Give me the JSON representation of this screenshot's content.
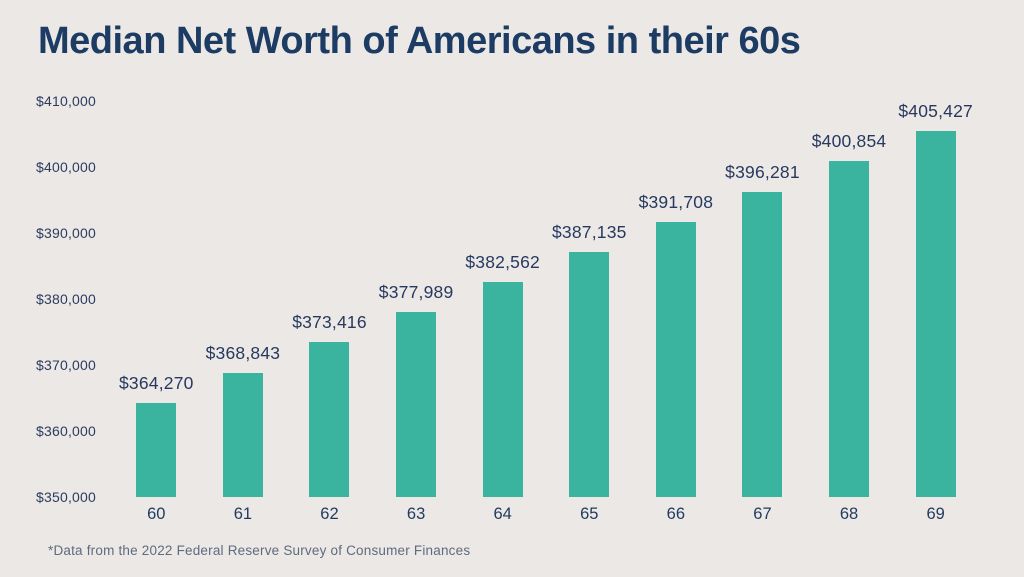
{
  "title": "Median Net Worth of Americans in their 60s",
  "footnote": "*Data from the 2022 Federal Reserve Survey of Consumer Finances",
  "colors": {
    "background": "#ECE8E6",
    "bar": "#3AB39F",
    "title_text": "#1C3C64",
    "value_label_text": "#26395E",
    "axis_tick_text": "#2B3C5E",
    "footnote_text": "#5E6B7E"
  },
  "chart_data": {
    "type": "bar",
    "title": "Median Net Worth of Americans in their 60s",
    "xlabel": "",
    "ylabel": "",
    "categories": [
      "60",
      "61",
      "62",
      "63",
      "64",
      "65",
      "66",
      "67",
      "68",
      "69"
    ],
    "values": [
      364270,
      368843,
      373416,
      377989,
      382562,
      387135,
      391708,
      396281,
      400854,
      405427
    ],
    "value_labels": [
      "$364,270",
      "$368,843",
      "$373,416",
      "$377,989",
      "$382,562",
      "$387,135",
      "$391,708",
      "$396,281",
      "$400,854",
      "$405,427"
    ],
    "ylim": [
      350000,
      410000
    ],
    "yticks": [
      "$350,000",
      "$360,000",
      "$370,000",
      "$380,000",
      "$390,000",
      "$400,000",
      "$410,000"
    ],
    "grid": false,
    "legend": false,
    "footnote": "*Data from the 2022 Federal Reserve Survey of Consumer Finances"
  }
}
